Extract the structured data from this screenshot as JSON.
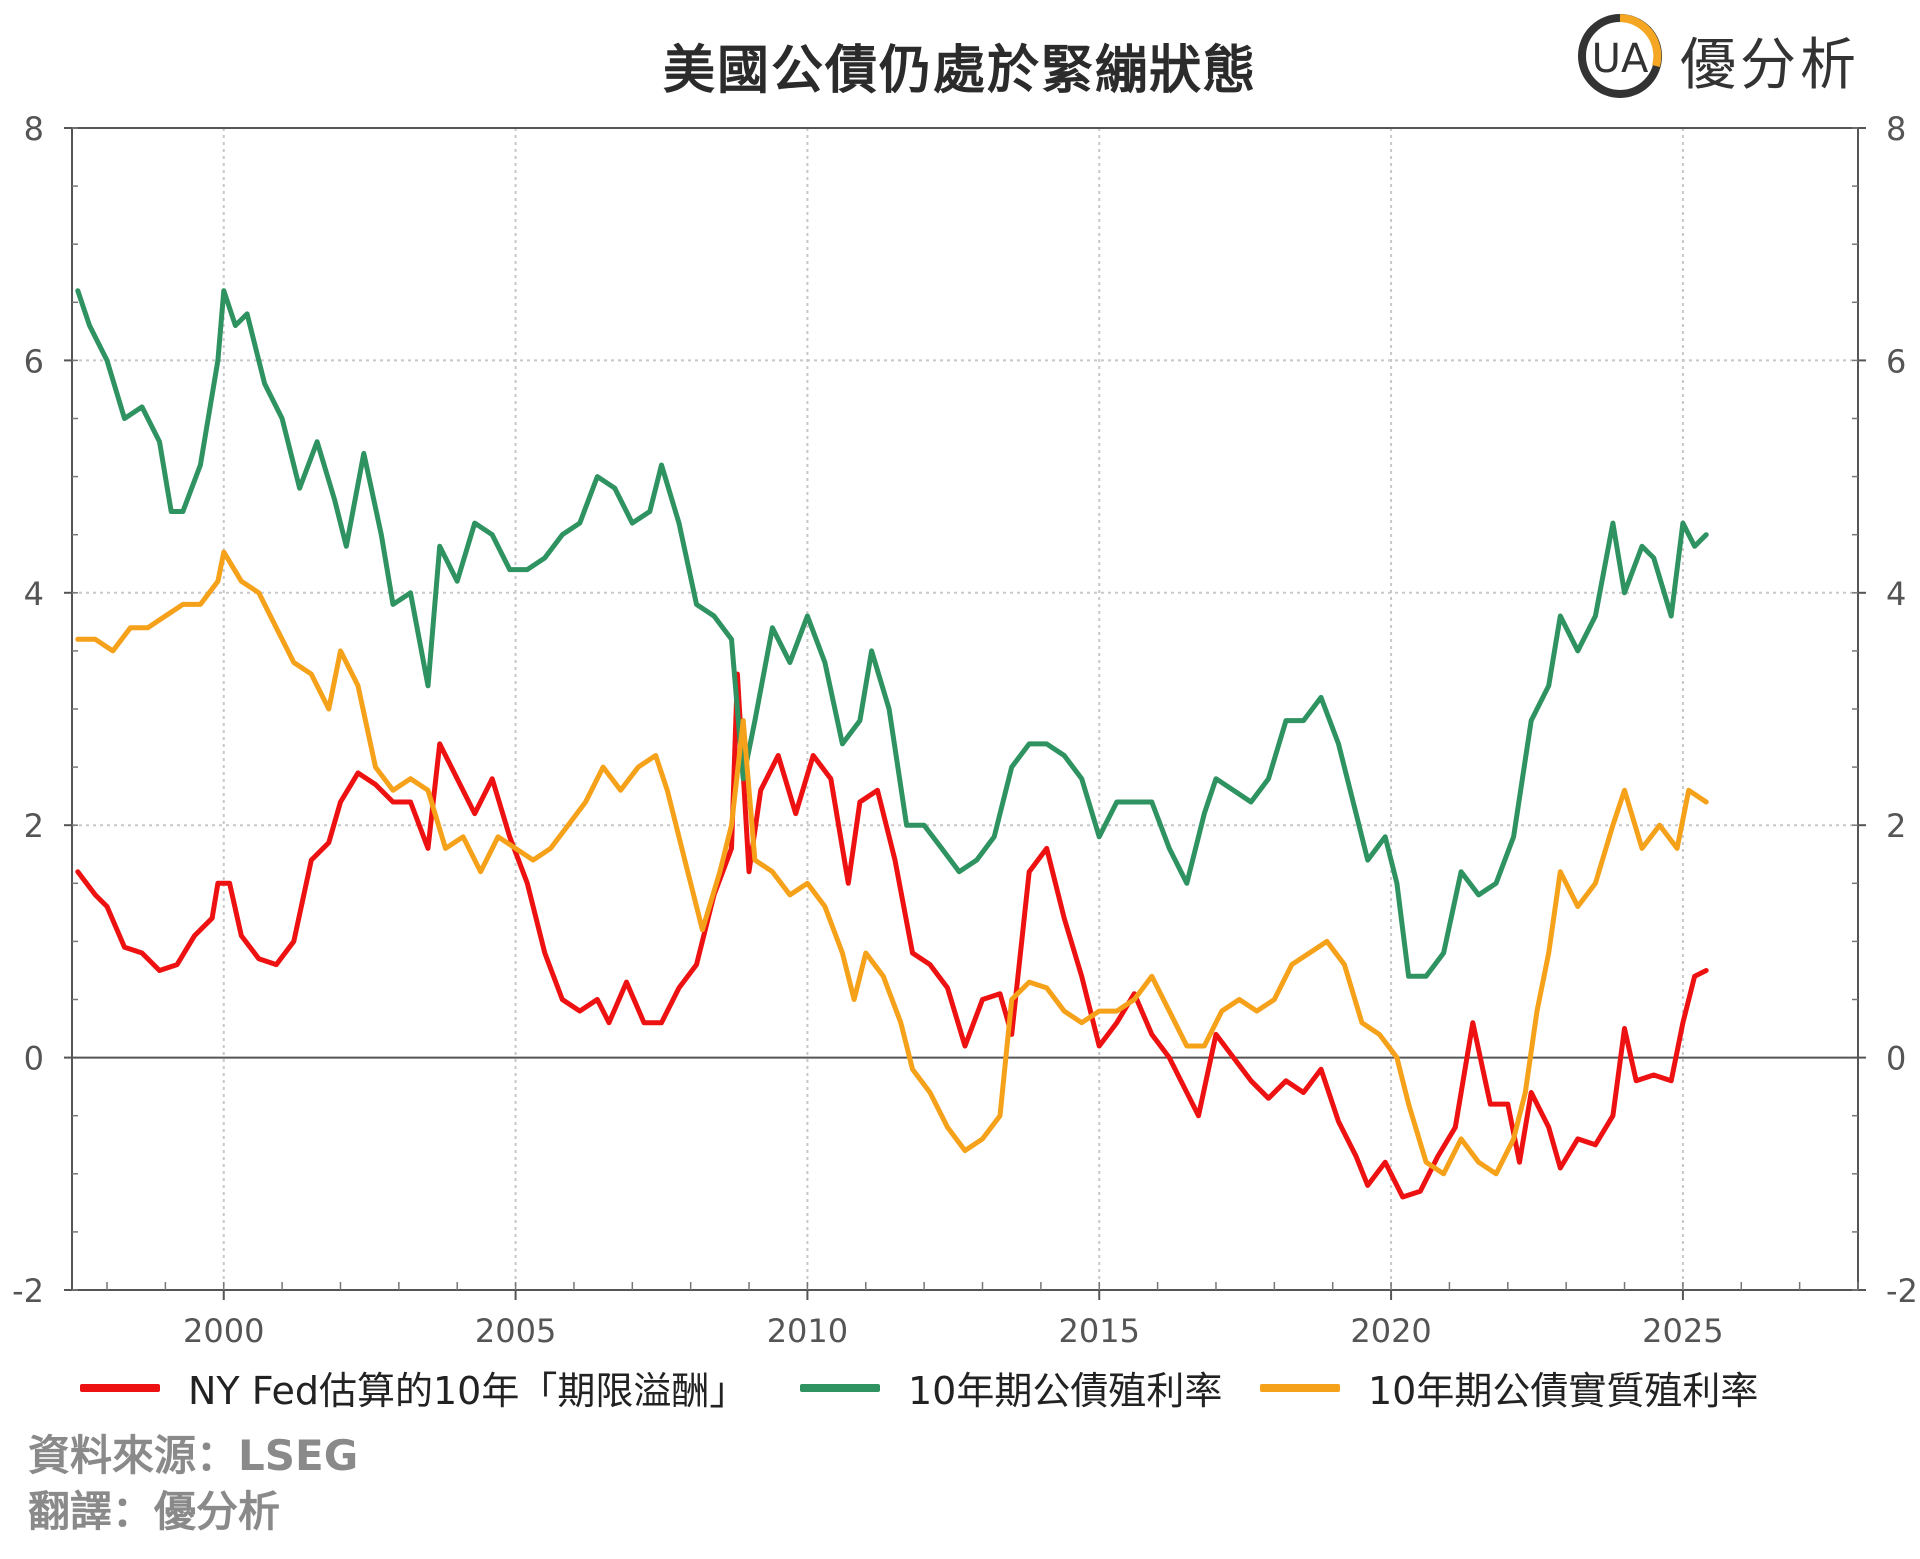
{
  "title": "美國公債仍處於緊繃狀態",
  "brand": {
    "name": "優分析",
    "logo_letters": "UA",
    "accent": "#f5a623",
    "ring": "#333333"
  },
  "source_line": "資料來源：LSEG",
  "translation_line": "翻譯：優分析",
  "chart_data": {
    "type": "line",
    "title": "美國公債仍處於緊繃狀態",
    "xlim": [
      1997.4,
      2028.0
    ],
    "ylim": [
      -2,
      8
    ],
    "x_ticks": [
      2000,
      2005,
      2010,
      2015,
      2020,
      2025
    ],
    "y_ticks": [
      -2,
      0,
      2,
      4,
      6,
      8
    ],
    "y_tick_labels": [
      "-2",
      "0",
      "2",
      "4",
      "6",
      "8"
    ],
    "x_tick_labels": [
      "2000",
      "2005",
      "2010",
      "2015",
      "2020",
      "2025"
    ],
    "grid": true,
    "legend_position": "bottom",
    "zero_line": 0,
    "series": [
      {
        "name": "NY Fed估算的10年「期限溢酬」",
        "color": "#ee1111",
        "points": [
          [
            1997.5,
            1.6
          ],
          [
            1997.8,
            1.4
          ],
          [
            1998.0,
            1.3
          ],
          [
            1998.3,
            0.95
          ],
          [
            1998.6,
            0.9
          ],
          [
            1998.9,
            0.75
          ],
          [
            1999.2,
            0.8
          ],
          [
            1999.5,
            1.05
          ],
          [
            1999.8,
            1.2
          ],
          [
            1999.9,
            1.5
          ],
          [
            2000.1,
            1.5
          ],
          [
            2000.3,
            1.05
          ],
          [
            2000.6,
            0.85
          ],
          [
            2000.9,
            0.8
          ],
          [
            2001.2,
            1.0
          ],
          [
            2001.5,
            1.7
          ],
          [
            2001.8,
            1.85
          ],
          [
            2002.0,
            2.2
          ],
          [
            2002.3,
            2.45
          ],
          [
            2002.6,
            2.35
          ],
          [
            2002.9,
            2.2
          ],
          [
            2003.2,
            2.2
          ],
          [
            2003.5,
            1.8
          ],
          [
            2003.7,
            2.7
          ],
          [
            2004.0,
            2.4
          ],
          [
            2004.3,
            2.1
          ],
          [
            2004.6,
            2.4
          ],
          [
            2004.9,
            1.9
          ],
          [
            2005.2,
            1.5
          ],
          [
            2005.5,
            0.9
          ],
          [
            2005.8,
            0.5
          ],
          [
            2006.1,
            0.4
          ],
          [
            2006.4,
            0.5
          ],
          [
            2006.6,
            0.3
          ],
          [
            2006.9,
            0.65
          ],
          [
            2007.2,
            0.3
          ],
          [
            2007.5,
            0.3
          ],
          [
            2007.8,
            0.6
          ],
          [
            2008.1,
            0.8
          ],
          [
            2008.4,
            1.4
          ],
          [
            2008.7,
            1.8
          ],
          [
            2008.8,
            3.3
          ],
          [
            2009.0,
            1.6
          ],
          [
            2009.2,
            2.3
          ],
          [
            2009.5,
            2.6
          ],
          [
            2009.8,
            2.1
          ],
          [
            2010.1,
            2.6
          ],
          [
            2010.4,
            2.4
          ],
          [
            2010.7,
            1.5
          ],
          [
            2010.9,
            2.2
          ],
          [
            2011.2,
            2.3
          ],
          [
            2011.5,
            1.7
          ],
          [
            2011.8,
            0.9
          ],
          [
            2012.1,
            0.8
          ],
          [
            2012.4,
            0.6
          ],
          [
            2012.7,
            0.1
          ],
          [
            2013.0,
            0.5
          ],
          [
            2013.3,
            0.55
          ],
          [
            2013.5,
            0.2
          ],
          [
            2013.8,
            1.6
          ],
          [
            2014.1,
            1.8
          ],
          [
            2014.4,
            1.2
          ],
          [
            2014.7,
            0.7
          ],
          [
            2015.0,
            0.1
          ],
          [
            2015.3,
            0.3
          ],
          [
            2015.6,
            0.55
          ],
          [
            2015.9,
            0.2
          ],
          [
            2016.2,
            0.0
          ],
          [
            2016.5,
            -0.3
          ],
          [
            2016.7,
            -0.5
          ],
          [
            2017.0,
            0.2
          ],
          [
            2017.3,
            0.0
          ],
          [
            2017.6,
            -0.2
          ],
          [
            2017.9,
            -0.35
          ],
          [
            2018.2,
            -0.2
          ],
          [
            2018.5,
            -0.3
          ],
          [
            2018.8,
            -0.1
          ],
          [
            2019.1,
            -0.55
          ],
          [
            2019.4,
            -0.85
          ],
          [
            2019.6,
            -1.1
          ],
          [
            2019.9,
            -0.9
          ],
          [
            2020.2,
            -1.2
          ],
          [
            2020.5,
            -1.15
          ],
          [
            2020.8,
            -0.85
          ],
          [
            2021.1,
            -0.6
          ],
          [
            2021.4,
            0.3
          ],
          [
            2021.7,
            -0.4
          ],
          [
            2022.0,
            -0.4
          ],
          [
            2022.2,
            -0.9
          ],
          [
            2022.4,
            -0.3
          ],
          [
            2022.7,
            -0.6
          ],
          [
            2022.9,
            -0.95
          ],
          [
            2023.2,
            -0.7
          ],
          [
            2023.5,
            -0.75
          ],
          [
            2023.8,
            -0.5
          ],
          [
            2024.0,
            0.25
          ],
          [
            2024.2,
            -0.2
          ],
          [
            2024.5,
            -0.15
          ],
          [
            2024.8,
            -0.2
          ],
          [
            2025.0,
            0.3
          ],
          [
            2025.2,
            0.7
          ],
          [
            2025.4,
            0.75
          ]
        ]
      },
      {
        "name": "10年期公債殖利率",
        "color": "#2e9360",
        "points": [
          [
            1997.5,
            6.6
          ],
          [
            1997.7,
            6.3
          ],
          [
            1998.0,
            6.0
          ],
          [
            1998.3,
            5.5
          ],
          [
            1998.6,
            5.6
          ],
          [
            1998.9,
            5.3
          ],
          [
            1999.1,
            4.7
          ],
          [
            1999.3,
            4.7
          ],
          [
            1999.6,
            5.1
          ],
          [
            1999.9,
            6.0
          ],
          [
            2000.0,
            6.6
          ],
          [
            2000.2,
            6.3
          ],
          [
            2000.4,
            6.4
          ],
          [
            2000.7,
            5.8
          ],
          [
            2001.0,
            5.5
          ],
          [
            2001.3,
            4.9
          ],
          [
            2001.6,
            5.3
          ],
          [
            2001.9,
            4.8
          ],
          [
            2002.1,
            4.4
          ],
          [
            2002.4,
            5.2
          ],
          [
            2002.7,
            4.5
          ],
          [
            2002.9,
            3.9
          ],
          [
            2003.2,
            4.0
          ],
          [
            2003.5,
            3.2
          ],
          [
            2003.7,
            4.4
          ],
          [
            2004.0,
            4.1
          ],
          [
            2004.3,
            4.6
          ],
          [
            2004.6,
            4.5
          ],
          [
            2004.9,
            4.2
          ],
          [
            2005.2,
            4.2
          ],
          [
            2005.5,
            4.3
          ],
          [
            2005.8,
            4.5
          ],
          [
            2006.1,
            4.6
          ],
          [
            2006.4,
            5.0
          ],
          [
            2006.7,
            4.9
          ],
          [
            2007.0,
            4.6
          ],
          [
            2007.3,
            4.7
          ],
          [
            2007.5,
            5.1
          ],
          [
            2007.8,
            4.6
          ],
          [
            2008.1,
            3.9
          ],
          [
            2008.4,
            3.8
          ],
          [
            2008.7,
            3.6
          ],
          [
            2008.9,
            2.4
          ],
          [
            2009.1,
            2.9
          ],
          [
            2009.4,
            3.7
          ],
          [
            2009.7,
            3.4
          ],
          [
            2010.0,
            3.8
          ],
          [
            2010.3,
            3.4
          ],
          [
            2010.6,
            2.7
          ],
          [
            2010.9,
            2.9
          ],
          [
            2011.1,
            3.5
          ],
          [
            2011.4,
            3.0
          ],
          [
            2011.7,
            2.0
          ],
          [
            2012.0,
            2.0
          ],
          [
            2012.3,
            1.8
          ],
          [
            2012.6,
            1.6
          ],
          [
            2012.9,
            1.7
          ],
          [
            2013.2,
            1.9
          ],
          [
            2013.5,
            2.5
          ],
          [
            2013.8,
            2.7
          ],
          [
            2014.1,
            2.7
          ],
          [
            2014.4,
            2.6
          ],
          [
            2014.7,
            2.4
          ],
          [
            2015.0,
            1.9
          ],
          [
            2015.3,
            2.2
          ],
          [
            2015.6,
            2.2
          ],
          [
            2015.9,
            2.2
          ],
          [
            2016.2,
            1.8
          ],
          [
            2016.5,
            1.5
          ],
          [
            2016.8,
            2.1
          ],
          [
            2017.0,
            2.4
          ],
          [
            2017.3,
            2.3
          ],
          [
            2017.6,
            2.2
          ],
          [
            2017.9,
            2.4
          ],
          [
            2018.2,
            2.9
          ],
          [
            2018.5,
            2.9
          ],
          [
            2018.8,
            3.1
          ],
          [
            2019.1,
            2.7
          ],
          [
            2019.4,
            2.1
          ],
          [
            2019.6,
            1.7
          ],
          [
            2019.9,
            1.9
          ],
          [
            2020.1,
            1.5
          ],
          [
            2020.3,
            0.7
          ],
          [
            2020.6,
            0.7
          ],
          [
            2020.9,
            0.9
          ],
          [
            2021.2,
            1.6
          ],
          [
            2021.5,
            1.4
          ],
          [
            2021.8,
            1.5
          ],
          [
            2022.1,
            1.9
          ],
          [
            2022.4,
            2.9
          ],
          [
            2022.7,
            3.2
          ],
          [
            2022.9,
            3.8
          ],
          [
            2023.2,
            3.5
          ],
          [
            2023.5,
            3.8
          ],
          [
            2023.8,
            4.6
          ],
          [
            2024.0,
            4.0
          ],
          [
            2024.3,
            4.4
          ],
          [
            2024.5,
            4.3
          ],
          [
            2024.8,
            3.8
          ],
          [
            2025.0,
            4.6
          ],
          [
            2025.2,
            4.4
          ],
          [
            2025.4,
            4.5
          ]
        ]
      },
      {
        "name": "10年期公債實質殖利率",
        "color": "#f5a11a",
        "points": [
          [
            1997.5,
            3.6
          ],
          [
            1997.8,
            3.6
          ],
          [
            1998.1,
            3.5
          ],
          [
            1998.4,
            3.7
          ],
          [
            1998.7,
            3.7
          ],
          [
            1999.0,
            3.8
          ],
          [
            1999.3,
            3.9
          ],
          [
            1999.6,
            3.9
          ],
          [
            1999.9,
            4.1
          ],
          [
            2000.0,
            4.35
          ],
          [
            2000.3,
            4.1
          ],
          [
            2000.6,
            4.0
          ],
          [
            2000.9,
            3.7
          ],
          [
            2001.2,
            3.4
          ],
          [
            2001.5,
            3.3
          ],
          [
            2001.8,
            3.0
          ],
          [
            2002.0,
            3.5
          ],
          [
            2002.3,
            3.2
          ],
          [
            2002.6,
            2.5
          ],
          [
            2002.9,
            2.3
          ],
          [
            2003.2,
            2.4
          ],
          [
            2003.5,
            2.3
          ],
          [
            2003.8,
            1.8
          ],
          [
            2004.1,
            1.9
          ],
          [
            2004.4,
            1.6
          ],
          [
            2004.7,
            1.9
          ],
          [
            2005.0,
            1.8
          ],
          [
            2005.3,
            1.7
          ],
          [
            2005.6,
            1.8
          ],
          [
            2005.9,
            2.0
          ],
          [
            2006.2,
            2.2
          ],
          [
            2006.5,
            2.5
          ],
          [
            2006.8,
            2.3
          ],
          [
            2007.1,
            2.5
          ],
          [
            2007.4,
            2.6
          ],
          [
            2007.6,
            2.3
          ],
          [
            2007.9,
            1.7
          ],
          [
            2008.2,
            1.1
          ],
          [
            2008.5,
            1.6
          ],
          [
            2008.7,
            2.0
          ],
          [
            2008.9,
            2.9
          ],
          [
            2009.1,
            1.7
          ],
          [
            2009.4,
            1.6
          ],
          [
            2009.7,
            1.4
          ],
          [
            2010.0,
            1.5
          ],
          [
            2010.3,
            1.3
          ],
          [
            2010.6,
            0.9
          ],
          [
            2010.8,
            0.5
          ],
          [
            2011.0,
            0.9
          ],
          [
            2011.3,
            0.7
          ],
          [
            2011.6,
            0.3
          ],
          [
            2011.8,
            -0.1
          ],
          [
            2012.1,
            -0.3
          ],
          [
            2012.4,
            -0.6
          ],
          [
            2012.7,
            -0.8
          ],
          [
            2013.0,
            -0.7
          ],
          [
            2013.3,
            -0.5
          ],
          [
            2013.5,
            0.5
          ],
          [
            2013.8,
            0.65
          ],
          [
            2014.1,
            0.6
          ],
          [
            2014.4,
            0.4
          ],
          [
            2014.7,
            0.3
          ],
          [
            2015.0,
            0.4
          ],
          [
            2015.3,
            0.4
          ],
          [
            2015.6,
            0.5
          ],
          [
            2015.9,
            0.7
          ],
          [
            2016.2,
            0.4
          ],
          [
            2016.5,
            0.1
          ],
          [
            2016.8,
            0.1
          ],
          [
            2017.1,
            0.4
          ],
          [
            2017.4,
            0.5
          ],
          [
            2017.7,
            0.4
          ],
          [
            2018.0,
            0.5
          ],
          [
            2018.3,
            0.8
          ],
          [
            2018.6,
            0.9
          ],
          [
            2018.9,
            1.0
          ],
          [
            2019.2,
            0.8
          ],
          [
            2019.5,
            0.3
          ],
          [
            2019.8,
            0.2
          ],
          [
            2020.1,
            0.0
          ],
          [
            2020.3,
            -0.4
          ],
          [
            2020.6,
            -0.9
          ],
          [
            2020.9,
            -1.0
          ],
          [
            2021.2,
            -0.7
          ],
          [
            2021.5,
            -0.9
          ],
          [
            2021.8,
            -1.0
          ],
          [
            2022.1,
            -0.7
          ],
          [
            2022.3,
            -0.3
          ],
          [
            2022.5,
            0.4
          ],
          [
            2022.7,
            0.9
          ],
          [
            2022.9,
            1.6
          ],
          [
            2023.2,
            1.3
          ],
          [
            2023.5,
            1.5
          ],
          [
            2023.8,
            2.0
          ],
          [
            2024.0,
            2.3
          ],
          [
            2024.3,
            1.8
          ],
          [
            2024.6,
            2.0
          ],
          [
            2024.9,
            1.8
          ],
          [
            2025.1,
            2.3
          ],
          [
            2025.4,
            2.2
          ]
        ]
      }
    ]
  }
}
